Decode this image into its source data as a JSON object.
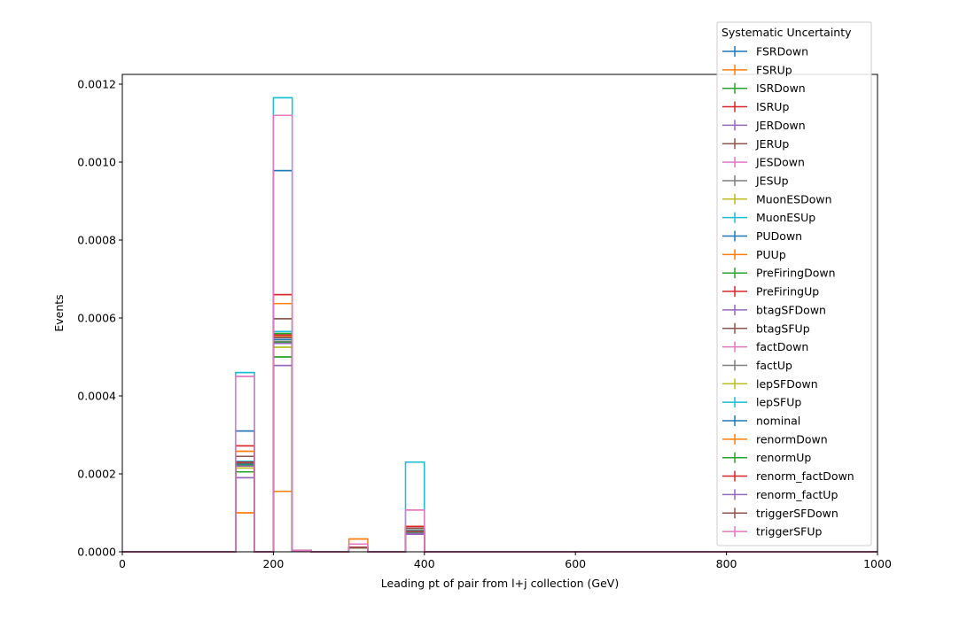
{
  "chart_data": {
    "type": "histogram-step",
    "title": "",
    "xlabel": "Leading pt of pair from l+j collection (GeV)",
    "ylabel": "Events",
    "xlim": [
      0,
      1000
    ],
    "ylim": [
      0,
      0.001225
    ],
    "xticks": [
      0,
      200,
      400,
      600,
      800,
      1000
    ],
    "xtick_labels": [
      "0",
      "200",
      "400",
      "600",
      "800",
      "1000"
    ],
    "yticks": [
      0,
      0.0002,
      0.0004,
      0.0006,
      0.0008,
      0.001,
      0.0012
    ],
    "ytick_labels": [
      "0.0000",
      "0.0002",
      "0.0004",
      "0.0006",
      "0.0008",
      "0.0010",
      "0.0012"
    ],
    "grid": false,
    "legend": {
      "title": "Systematic Uncertainty",
      "placement": "upper-right-outside"
    },
    "bins": [
      {
        "x0": 150,
        "x1": 175
      },
      {
        "x0": 200,
        "x1": 225
      },
      {
        "x0": 225,
        "x1": 250
      },
      {
        "x0": 300,
        "x1": 325
      },
      {
        "x0": 375,
        "x1": 400
      }
    ],
    "series": [
      {
        "name": "FSRDown",
        "color": "#1f77b4",
        "values": [
          0.00023,
          0.00054,
          3e-06,
          1e-05,
          5e-05
        ]
      },
      {
        "name": "FSRUp",
        "color": "#ff7f0e",
        "values": [
          0.0001,
          0.000155,
          3e-06,
          3.3e-05,
          5e-05
        ]
      },
      {
        "name": "ISRDown",
        "color": "#2ca02c",
        "values": [
          0.00022,
          0.00056,
          3e-06,
          1e-05,
          5.5e-05
        ]
      },
      {
        "name": "ISRUp",
        "color": "#d62728",
        "values": [
          0.00023,
          0.00055,
          3e-06,
          1e-05,
          5.5e-05
        ]
      },
      {
        "name": "JERDown",
        "color": "#9467bd",
        "values": [
          0.000225,
          0.000545,
          3e-06,
          1e-05,
          5e-05
        ]
      },
      {
        "name": "JERUp",
        "color": "#8c564b",
        "values": [
          0.000225,
          0.000545,
          3e-06,
          1e-05,
          5e-05
        ]
      },
      {
        "name": "JESDown",
        "color": "#e377c2",
        "values": [
          0.00023,
          0.00055,
          3e-06,
          1e-05,
          5.5e-05
        ]
      },
      {
        "name": "JESUp",
        "color": "#7f7f7f",
        "values": [
          0.00022,
          0.00054,
          3e-06,
          1e-05,
          4.5e-05
        ]
      },
      {
        "name": "MuonESDown",
        "color": "#bcbd22",
        "values": [
          0.000225,
          0.000545,
          3e-06,
          1e-05,
          5e-05
        ]
      },
      {
        "name": "MuonESUp",
        "color": "#17becf",
        "values": [
          0.00046,
          0.001165,
          3e-06,
          1e-05,
          0.00023
        ]
      },
      {
        "name": "PUDown",
        "color": "#1f77b4",
        "values": [
          0.00031,
          0.000978,
          3e-06,
          1e-05,
          6e-05
        ]
      },
      {
        "name": "PUUp",
        "color": "#ff7f0e",
        "values": [
          0.000258,
          0.000637,
          3e-06,
          1.2e-05,
          6.5e-05
        ]
      },
      {
        "name": "PreFiringDown",
        "color": "#2ca02c",
        "values": [
          0.000205,
          0.0005,
          3e-06,
          1e-05,
          5e-05
        ]
      },
      {
        "name": "PreFiringUp",
        "color": "#d62728",
        "values": [
          0.000272,
          0.00066,
          3e-06,
          1.2e-05,
          6.5e-05
        ]
      },
      {
        "name": "btagSFDown",
        "color": "#9467bd",
        "values": [
          0.00019,
          0.000478,
          3e-06,
          1e-05,
          4.5e-05
        ]
      },
      {
        "name": "btagSFUp",
        "color": "#8c564b",
        "values": [
          0.000245,
          0.000598,
          3e-06,
          1e-05,
          6e-05
        ]
      },
      {
        "name": "factDown",
        "color": "#e377c2",
        "values": [
          0.000225,
          0.000545,
          3e-06,
          1e-05,
          5e-05
        ]
      },
      {
        "name": "factUp",
        "color": "#7f7f7f",
        "values": [
          0.000225,
          0.000545,
          3e-06,
          1e-05,
          5e-05
        ]
      },
      {
        "name": "lepSFDown",
        "color": "#bcbd22",
        "values": [
          0.000215,
          0.000525,
          3e-06,
          1e-05,
          5e-05
        ]
      },
      {
        "name": "lepSFUp",
        "color": "#17becf",
        "values": [
          0.000232,
          0.000565,
          3e-06,
          1e-05,
          5.5e-05
        ]
      },
      {
        "name": "nominal",
        "color": "#1f77b4",
        "values": [
          0.000225,
          0.000545,
          3e-06,
          1e-05,
          5e-05
        ]
      },
      {
        "name": "renormDown",
        "color": "#ff7f0e",
        "values": [
          0.000228,
          0.000552,
          3e-06,
          1e-05,
          5.2e-05
        ]
      },
      {
        "name": "renormUp",
        "color": "#2ca02c",
        "values": [
          0.000222,
          0.000538,
          3e-06,
          1e-05,
          4.8e-05
        ]
      },
      {
        "name": "renorm_factDown",
        "color": "#d62728",
        "values": [
          0.00023,
          0.000556,
          3e-06,
          1e-05,
          5.3e-05
        ]
      },
      {
        "name": "renorm_factUp",
        "color": "#9467bd",
        "values": [
          0.00022,
          0.000535,
          3e-06,
          1e-05,
          4.7e-05
        ]
      },
      {
        "name": "triggerSFDown",
        "color": "#8c564b",
        "values": [
          0.000228,
          0.00055,
          3e-06,
          1e-05,
          5.2e-05
        ]
      },
      {
        "name": "triggerSFUp",
        "color": "#e377c2",
        "values": [
          0.00045,
          0.00112,
          3e-06,
          2e-05,
          0.000107
        ]
      }
    ]
  }
}
